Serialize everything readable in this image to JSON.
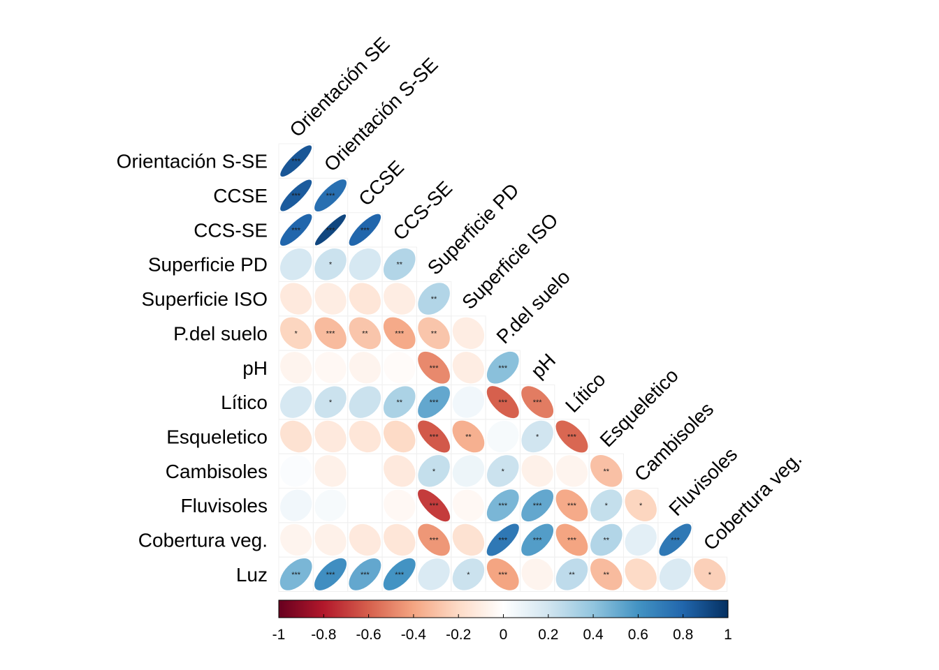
{
  "chart_data": {
    "type": "heatmap",
    "variables": [
      "Orientación SE",
      "Orientación S-SE",
      "CCSE",
      "CCS-SE",
      "Superficie PD",
      "Superficie ISO",
      "P.del suelo",
      "pH",
      "Lítico",
      "Esqueletico",
      "Cambisoles",
      "Fluvisoles",
      "Cobertura veg.",
      "Luz"
    ],
    "row_labels": [
      "Orientación S-SE",
      "CCSE",
      "CCS-SE",
      "Superficie PD",
      "Superficie ISO",
      "P.del suelo",
      "pH",
      "Lítico",
      "Esqueletico",
      "Cambisoles",
      "Fluvisoles",
      "Cobertura veg.",
      "Luz"
    ],
    "column_labels": [
      "Orientación SE",
      "Orientación S-SE",
      "CCSE",
      "CCS-SE",
      "Superficie PD",
      "Superficie ISO",
      "P.del suelo",
      "pH",
      "Lítico",
      "Esqueletico",
      "Cambisoles",
      "Fluvisoles",
      "Cobertura veg."
    ],
    "correlations": [
      [
        0.86
      ],
      [
        0.84,
        0.76
      ],
      [
        0.8,
        0.92,
        0.8
      ],
      [
        0.18,
        0.22,
        0.18,
        0.3
      ],
      [
        -0.12,
        -0.1,
        -0.14,
        -0.1,
        0.3
      ],
      [
        -0.22,
        -0.32,
        -0.28,
        -0.38,
        -0.28,
        -0.1
      ],
      [
        -0.06,
        -0.04,
        -0.06,
        -0.02,
        -0.48,
        -0.1,
        0.42
      ],
      [
        0.18,
        0.22,
        0.22,
        0.32,
        0.52,
        0.06,
        -0.6,
        -0.52
      ],
      [
        -0.16,
        -0.12,
        -0.14,
        -0.2,
        -0.62,
        -0.36,
        0.04,
        0.2,
        -0.58
      ],
      [
        0.02,
        -0.08,
        0.0,
        -0.12,
        0.24,
        0.08,
        0.22,
        -0.08,
        -0.06,
        -0.3
      ],
      [
        0.06,
        0.04,
        0.0,
        -0.04,
        -0.7,
        -0.04,
        0.46,
        0.52,
        -0.38,
        0.24,
        -0.22
      ],
      [
        -0.06,
        -0.08,
        -0.12,
        -0.14,
        -0.44,
        -0.16,
        0.72,
        0.56,
        -0.4,
        0.3,
        0.12,
        0.72
      ],
      [
        0.46,
        0.62,
        0.52,
        0.6,
        0.16,
        0.22,
        -0.4,
        -0.06,
        0.26,
        -0.32,
        -0.2,
        0.16,
        -0.24
      ]
    ],
    "significance": [
      [
        "***"
      ],
      [
        "***",
        "***"
      ],
      [
        "***",
        "***",
        "***"
      ],
      [
        "",
        "*",
        "",
        "**"
      ],
      [
        "",
        "",
        "",
        "",
        "**"
      ],
      [
        "*",
        "***",
        "**",
        "***",
        "**",
        ""
      ],
      [
        "",
        "",
        "",
        "",
        "***",
        "",
        "***"
      ],
      [
        "",
        "*",
        "",
        "**",
        "***",
        "",
        "***",
        "***"
      ],
      [
        "",
        "",
        "",
        "",
        "***",
        "**",
        "",
        "*",
        "***"
      ],
      [
        "",
        "",
        "",
        "",
        "*",
        "",
        "*",
        "",
        "",
        "**"
      ],
      [
        "",
        "",
        "",
        "",
        "***",
        "",
        "***",
        "***",
        "***",
        "*",
        "*"
      ],
      [
        "",
        "",
        "",
        "",
        "***",
        "",
        "***",
        "***",
        "***",
        "**",
        "",
        "***"
      ],
      [
        "***",
        "***",
        "***",
        "***",
        "",
        "*",
        "***",
        "",
        "**",
        "**",
        "",
        "",
        "*"
      ]
    ],
    "colorbar": {
      "range": [
        -1,
        1
      ],
      "ticks": [
        "-1",
        "-0.8",
        "-0.6",
        "-0.4",
        "-0.2",
        "0",
        "0.2",
        "0.4",
        "0.6",
        "0.8",
        "1"
      ],
      "colors": [
        "#67001f",
        "#b2182b",
        "#d6604d",
        "#f4a582",
        "#fddbc7",
        "#ffffff",
        "#d1e5f0",
        "#92c5de",
        "#4393c3",
        "#2166ac",
        "#053061"
      ]
    },
    "title": "",
    "xlabel": "",
    "ylabel": ""
  }
}
